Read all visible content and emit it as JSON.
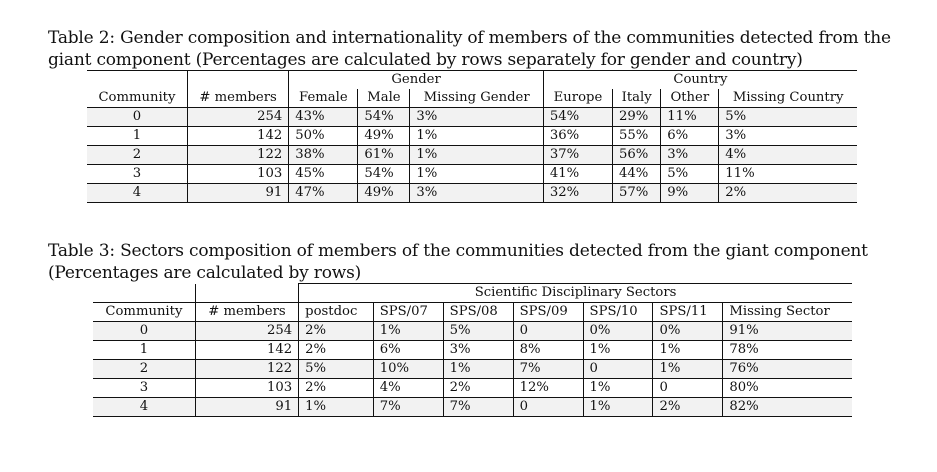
{
  "table2": {
    "caption": "Table 2: Gender composition and internationality of members of the communities detected from the giant component (Percentages are calculated by rows separately for gender and country)",
    "group_headers": {
      "gender": "Gender",
      "country": "Country"
    },
    "columns": [
      "Community",
      "# members",
      "Female",
      "Male",
      "Missing Gender",
      "Europe",
      "Italy",
      "Other",
      "Missing Country"
    ],
    "rows": [
      [
        "0",
        "254",
        "43%",
        "54%",
        "3%",
        "54%",
        "29%",
        "11%",
        "5%"
      ],
      [
        "1",
        "142",
        "50%",
        "49%",
        "1%",
        "36%",
        "55%",
        "6%",
        "3%"
      ],
      [
        "2",
        "122",
        "38%",
        "61%",
        "1%",
        "37%",
        "56%",
        "3%",
        "4%"
      ],
      [
        "3",
        "103",
        "45%",
        "54%",
        "1%",
        "41%",
        "44%",
        "5%",
        "11%"
      ],
      [
        "4",
        "91",
        "47%",
        "49%",
        "3%",
        "32%",
        "57%",
        "9%",
        "2%"
      ]
    ]
  },
  "table3": {
    "caption": "Table 3: Sectors composition of members of the communities detected from the giant component (Percentages are calculated by rows)",
    "group_headers": {
      "sectors": "Scientific Disciplinary Sectors"
    },
    "columns": [
      "Community",
      "# members",
      "postdoc",
      "SPS/07",
      "SPS/08",
      "SPS/09",
      "SPS/10",
      "SPS/11",
      "Missing Sector"
    ],
    "rows": [
      [
        "0",
        "254",
        "2%",
        "1%",
        "5%",
        "0",
        "0%",
        "0%",
        "91%"
      ],
      [
        "1",
        "142",
        "2%",
        "6%",
        "3%",
        "8%",
        "1%",
        "1%",
        "78%"
      ],
      [
        "2",
        "122",
        "5%",
        "10%",
        "1%",
        "7%",
        "0",
        "1%",
        "76%"
      ],
      [
        "3",
        "103",
        "2%",
        "4%",
        "2%",
        "12%",
        "1%",
        "0",
        "80%"
      ],
      [
        "4",
        "91",
        "1%",
        "7%",
        "7%",
        "0",
        "1%",
        "2%",
        "82%"
      ]
    ]
  }
}
